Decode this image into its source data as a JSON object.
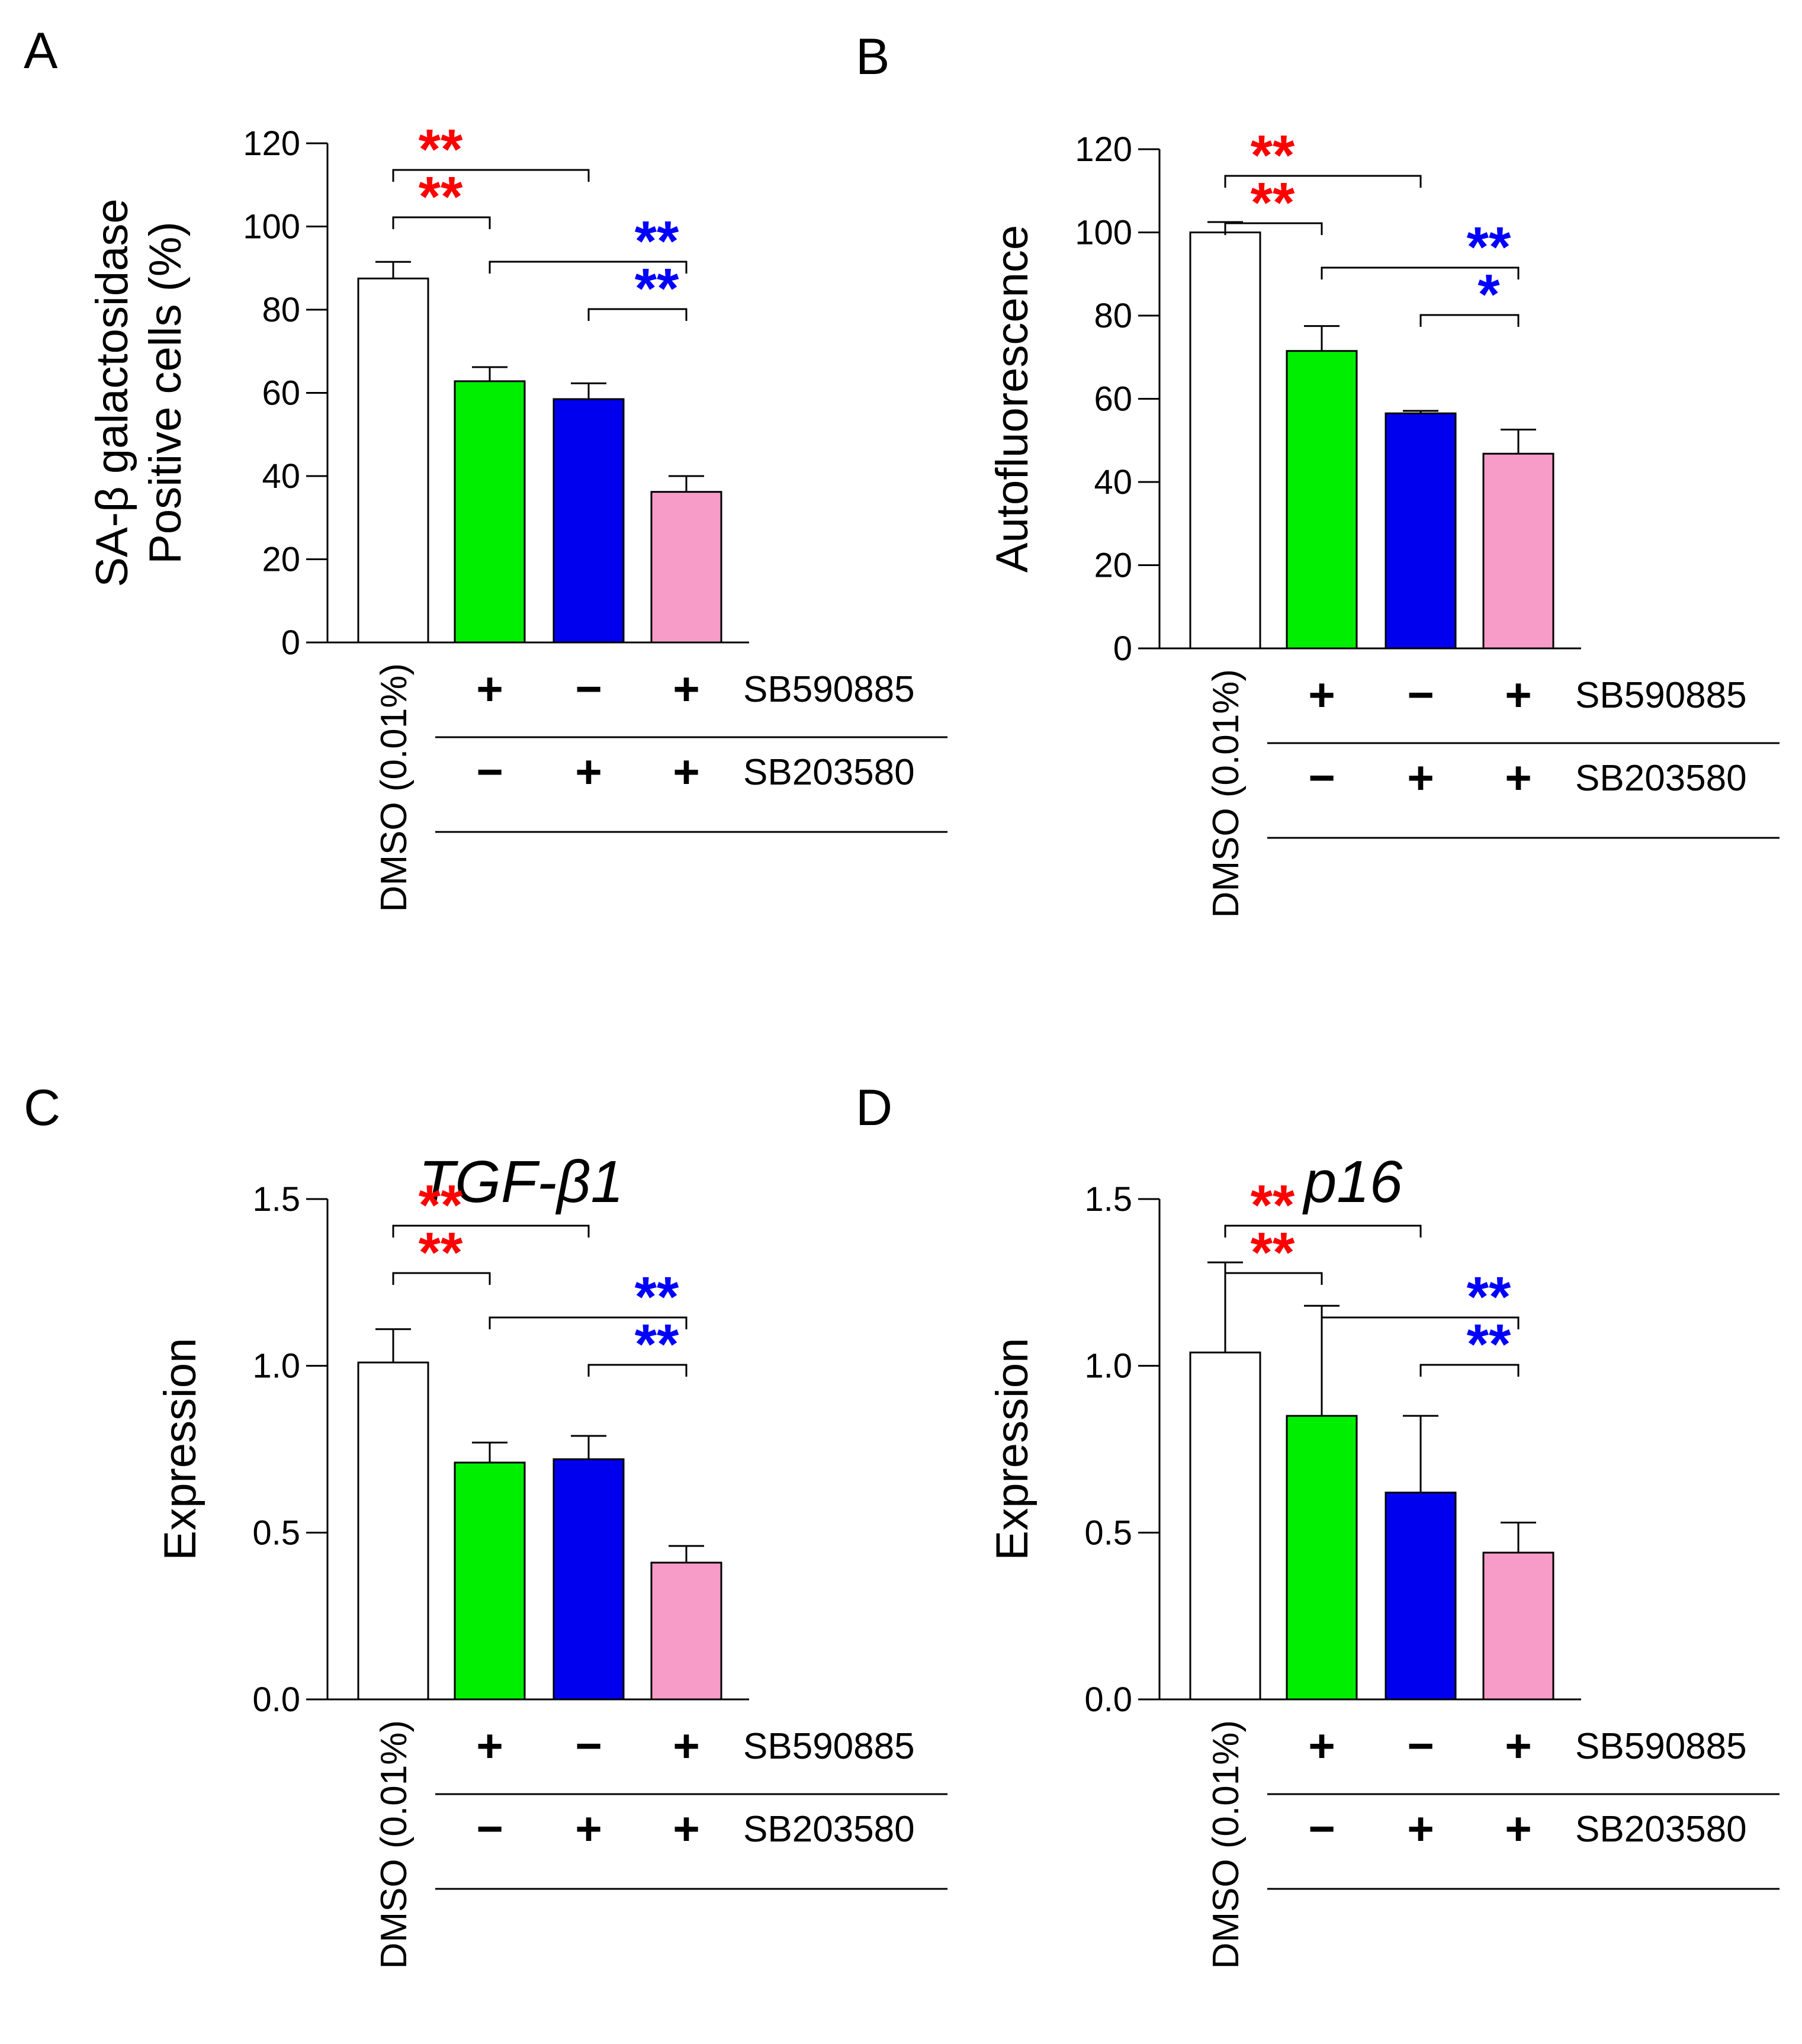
{
  "colors": {
    "axis": "#000000",
    "bars": [
      "#ffffff",
      "#00ee00",
      "#0000ee",
      "#f79cc8"
    ],
    "sig_red": "#ff0000",
    "sig_blue": "#0000ff"
  },
  "treatment_table": {
    "control_label": "DMSO (0.01%)",
    "row1": {
      "name": "SB590885",
      "signs": [
        "+",
        "−",
        "+"
      ]
    },
    "row2": {
      "name": "SB203580",
      "signs": [
        "−",
        "+",
        "+"
      ]
    }
  },
  "chart_data": [
    {
      "panel_label": "A",
      "type": "bar",
      "title": "",
      "ylabel_lines": [
        "SA-β galactosidase",
        "Positive cells (%)"
      ],
      "xlabel": "",
      "ylim": [
        0,
        120
      ],
      "yticks": [
        0,
        20,
        40,
        60,
        80,
        100,
        120
      ],
      "ytick_labels": [
        "0",
        "20",
        "40",
        "60",
        "80",
        "100",
        "120"
      ],
      "categories": [
        "DMSO (0.01%)",
        "SB590885",
        "SB203580",
        "SB590885 + SB203580"
      ],
      "values": [
        87.5,
        62.8,
        58.5,
        36.2
      ],
      "errors": [
        4.0,
        3.4,
        3.8,
        3.8
      ],
      "significance": [
        {
          "from": 0,
          "to": 2,
          "label": "**",
          "color": "red"
        },
        {
          "from": 0,
          "to": 1,
          "label": "**",
          "color": "red"
        },
        {
          "from": 1,
          "to": 3,
          "label": "**",
          "color": "blue"
        },
        {
          "from": 2,
          "to": 3,
          "label": "**",
          "color": "blue"
        }
      ]
    },
    {
      "panel_label": "B",
      "type": "bar",
      "title": "",
      "ylabel_lines": [
        "Autofluorescence"
      ],
      "xlabel": "",
      "ylim": [
        0,
        120
      ],
      "yticks": [
        0,
        20,
        40,
        60,
        80,
        100,
        120
      ],
      "ytick_labels": [
        "0",
        "20",
        "40",
        "60",
        "80",
        "100",
        "120"
      ],
      "categories": [
        "DMSO (0.01%)",
        "SB590885",
        "SB203580",
        "SB590885 + SB203580"
      ],
      "values": [
        100,
        71.5,
        56.5,
        46.8
      ],
      "errors": [
        2.5,
        6.0,
        0.6,
        5.8
      ],
      "significance": [
        {
          "from": 0,
          "to": 2,
          "label": "**",
          "color": "red"
        },
        {
          "from": 0,
          "to": 1,
          "label": "**",
          "color": "red"
        },
        {
          "from": 1,
          "to": 3,
          "label": "**",
          "color": "blue"
        },
        {
          "from": 2,
          "to": 3,
          "label": "*",
          "color": "blue"
        }
      ]
    },
    {
      "panel_label": "C",
      "type": "bar",
      "title": "TGF-β1",
      "ylabel_lines": [
        "Expression"
      ],
      "xlabel": "",
      "ylim": [
        0,
        1.5
      ],
      "yticks": [
        0,
        0.5,
        1.0,
        1.5
      ],
      "ytick_labels": [
        "0.0",
        "0.5",
        "1.0",
        "1.5"
      ],
      "categories": [
        "DMSO (0.01%)",
        "SB590885",
        "SB203580",
        "SB590885 + SB203580"
      ],
      "values": [
        1.01,
        0.71,
        0.72,
        0.41
      ],
      "errors": [
        0.1,
        0.06,
        0.07,
        0.05
      ],
      "significance": [
        {
          "from": 0,
          "to": 2,
          "label": "**",
          "color": "red"
        },
        {
          "from": 0,
          "to": 1,
          "label": "**",
          "color": "red"
        },
        {
          "from": 1,
          "to": 3,
          "label": "**",
          "color": "blue"
        },
        {
          "from": 2,
          "to": 3,
          "label": "**",
          "color": "blue"
        }
      ]
    },
    {
      "panel_label": "D",
      "type": "bar",
      "title": "p16",
      "ylabel_lines": [
        "Expression"
      ],
      "xlabel": "",
      "ylim": [
        0,
        1.5
      ],
      "yticks": [
        0,
        0.5,
        1.0,
        1.5
      ],
      "ytick_labels": [
        "0.0",
        "0.5",
        "1.0",
        "1.5"
      ],
      "categories": [
        "DMSO (0.01%)",
        "SB590885",
        "SB203580",
        "SB590885 + SB203580"
      ],
      "values": [
        1.04,
        0.85,
        0.62,
        0.44
      ],
      "errors": [
        0.27,
        0.33,
        0.23,
        0.09
      ],
      "significance": [
        {
          "from": 0,
          "to": 2,
          "label": "**",
          "color": "red"
        },
        {
          "from": 0,
          "to": 1,
          "label": "**",
          "color": "red"
        },
        {
          "from": 1,
          "to": 3,
          "label": "**",
          "color": "blue"
        },
        {
          "from": 2,
          "to": 3,
          "label": "**",
          "color": "blue"
        }
      ]
    }
  ]
}
